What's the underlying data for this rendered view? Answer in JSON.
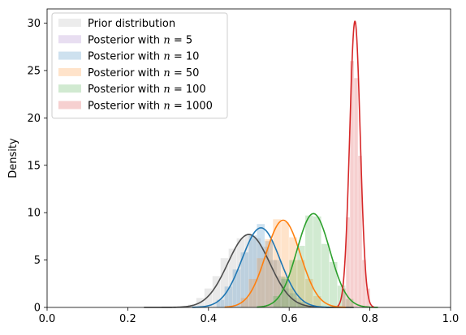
{
  "chart_data": {
    "type": "area",
    "title": "",
    "xlabel": "",
    "ylabel": "Density",
    "xlim": [
      0,
      1
    ],
    "ylim": [
      0,
      31.5
    ],
    "xticks": [
      0.0,
      0.2,
      0.4,
      0.6,
      0.8,
      1.0
    ],
    "xtick_labels": [
      "0.0",
      "0.2",
      "0.4",
      "0.6",
      "0.8",
      "1.0"
    ],
    "yticks": [
      0,
      5,
      10,
      15,
      20,
      25,
      30
    ],
    "ytick_labels": [
      "0",
      "5",
      "10",
      "15",
      "20",
      "25",
      "30"
    ],
    "grid": false,
    "legend_position": "top-left",
    "series": [
      {
        "name": "Prior distribution",
        "prefix": "Prior distribution",
        "n": "",
        "color": "#4d4d4d",
        "fill": "#c8c8c8",
        "kde": {
          "mean": 0.5,
          "sd": 0.052,
          "peak": 7.7,
          "xmin": 0.24,
          "xmax": 0.76
        },
        "hist_centers": [
          0.36,
          0.38,
          0.4,
          0.42,
          0.44,
          0.46,
          0.48,
          0.5,
          0.52,
          0.54,
          0.56,
          0.58,
          0.6,
          0.62,
          0.64
        ],
        "hist_values": [
          0.3,
          1.0,
          2.0,
          3.3,
          5.2,
          6.2,
          7.3,
          7.6,
          7.3,
          6.4,
          5.0,
          3.3,
          2.0,
          1.0,
          0.4
        ]
      },
      {
        "name": "Posterior with n = 5",
        "prefix": "Posterior with ",
        "n": "5",
        "color": "#9467bd",
        "fill": "#9467bd",
        "kde": null,
        "hist_centers": [],
        "hist_values": []
      },
      {
        "name": "Posterior with n = 10",
        "prefix": "Posterior with ",
        "n": "10",
        "color": "#1f77b4",
        "fill": "#1f77b4",
        "kde": {
          "mean": 0.53,
          "sd": 0.047,
          "peak": 8.4,
          "xmin": 0.36,
          "xmax": 0.7
        },
        "hist_centers": [
          0.43,
          0.45,
          0.47,
          0.49,
          0.51,
          0.53,
          0.55,
          0.57,
          0.59,
          0.61,
          0.63
        ],
        "hist_values": [
          0.8,
          2.2,
          4.0,
          5.8,
          7.6,
          8.8,
          7.0,
          5.0,
          3.0,
          1.5,
          0.6
        ]
      },
      {
        "name": "Posterior with n = 50",
        "prefix": "Posterior with ",
        "n": "50",
        "color": "#ff7f0e",
        "fill": "#ff7f0e",
        "kde": {
          "mean": 0.585,
          "sd": 0.043,
          "peak": 9.2,
          "xmin": 0.44,
          "xmax": 0.74
        },
        "hist_centers": [
          0.49,
          0.51,
          0.53,
          0.55,
          0.57,
          0.59,
          0.61,
          0.63,
          0.65,
          0.67
        ],
        "hist_values": [
          1.0,
          3.0,
          5.2,
          7.2,
          9.3,
          9.0,
          7.4,
          5.0,
          3.0,
          1.2
        ]
      },
      {
        "name": "Posterior with n = 100",
        "prefix": "Posterior with ",
        "n": "100",
        "color": "#2ca02c",
        "fill": "#2ca02c",
        "kde": {
          "mean": 0.66,
          "sd": 0.041,
          "peak": 9.9,
          "xmin": 0.52,
          "xmax": 0.82
        },
        "hist_centers": [
          0.57,
          0.59,
          0.61,
          0.63,
          0.65,
          0.67,
          0.69,
          0.71,
          0.73,
          0.75
        ],
        "hist_values": [
          1.2,
          3.2,
          5.0,
          6.5,
          9.7,
          9.6,
          6.7,
          4.8,
          2.3,
          0.9
        ]
      },
      {
        "name": "Posterior with n = 1000",
        "prefix": "Posterior with ",
        "n": "1000",
        "color": "#d62728",
        "fill": "#d62728",
        "kde": {
          "mean": 0.763,
          "sd": 0.013,
          "peak": 30.2,
          "xmin": 0.72,
          "xmax": 0.81
        },
        "hist_centers": [
          0.736,
          0.746,
          0.756,
          0.766,
          0.776,
          0.786,
          0.796
        ],
        "hist_values": [
          2.0,
          9.5,
          26.0,
          24.2,
          16.0,
          5.0,
          2.0
        ]
      }
    ]
  }
}
